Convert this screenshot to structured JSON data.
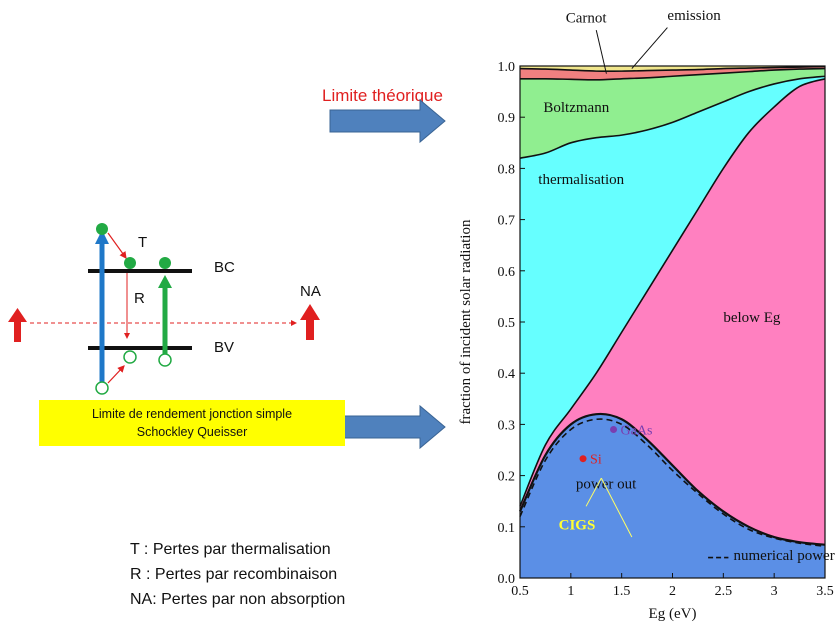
{
  "left_panel": {
    "limite_theorique": "Limite théorique",
    "labels": {
      "T": "T",
      "R": "R",
      "BC": "BC",
      "BV": "BV",
      "NA": "NA"
    },
    "box_line1": "Limite de rendement jonction simple",
    "box_line2": "Schockley Queisser",
    "legend": [
      "T : Pertes par thermalisation",
      "R : Pertes par recombinaison",
      "NA: Pertes par non absorption"
    ]
  },
  "colors": {
    "carnot": "#f08080",
    "emission": "#f0e68c",
    "boltzmann": "#90ee90",
    "thermalisation": "#66ffff",
    "below_eg": "#ff80c0",
    "power_out": "#5b8fe6",
    "red": "#e02020",
    "arrow_blue": "#4f81bd",
    "band_blue": "#1f78c8",
    "electron_green": "#22aa44",
    "purple": "#7a3eb0",
    "cigs_yellow": "#ffff33"
  },
  "chart_data": {
    "type": "area",
    "xlabel": "Eg (eV)",
    "ylabel": "fraction of incident solar radiation",
    "xlim": [
      0.5,
      3.5
    ],
    "ylim": [
      0.0,
      1.0
    ],
    "xticks": [
      "0.5",
      "1",
      "1.5",
      "2",
      "2.5",
      "3",
      "3.5"
    ],
    "yticks": [
      "0.0",
      "0.1",
      "0.2",
      "0.3",
      "0.4",
      "0.5",
      "0.6",
      "0.7",
      "0.8",
      "0.9",
      "1.0"
    ],
    "x": [
      0.5,
      0.75,
      1.0,
      1.25,
      1.5,
      1.75,
      2.0,
      2.25,
      2.5,
      2.75,
      3.0,
      3.25,
      3.5
    ],
    "series": [
      {
        "name": "power out",
        "values": [
          0.13,
          0.24,
          0.3,
          0.32,
          0.31,
          0.27,
          0.22,
          0.17,
          0.13,
          0.1,
          0.08,
          0.07,
          0.065
        ]
      },
      {
        "name": "below Eg",
        "values": [
          0.14,
          0.26,
          0.33,
          0.4,
          0.48,
          0.56,
          0.64,
          0.72,
          0.8,
          0.87,
          0.92,
          0.96,
          0.975
        ]
      },
      {
        "name": "thermalisation",
        "values": [
          0.82,
          0.83,
          0.85,
          0.86,
          0.865,
          0.875,
          0.89,
          0.91,
          0.93,
          0.95,
          0.965,
          0.975,
          0.98
        ]
      },
      {
        "name": "Boltzmann",
        "values": [
          0.975,
          0.975,
          0.974,
          0.973,
          0.975,
          0.977,
          0.98,
          0.983,
          0.986,
          0.989,
          0.992,
          0.994,
          0.995
        ]
      },
      {
        "name": "Carnot",
        "values": [
          0.995,
          0.994,
          0.992,
          0.99,
          0.99,
          0.991,
          0.992,
          0.993,
          0.995,
          0.996,
          0.997,
          0.998,
          0.999
        ]
      },
      {
        "name": "emission",
        "values": [
          1.0,
          1.0,
          1.0,
          1.0,
          1.0,
          1.0,
          1.0,
          1.0,
          1.0,
          1.0,
          1.0,
          1.0,
          1.0
        ]
      }
    ],
    "numerical_power_out": {
      "name": "numerical power out",
      "x": [
        0.5,
        0.75,
        1.0,
        1.25,
        1.5,
        1.75,
        2.0,
        2.25,
        2.5,
        2.75,
        3.0,
        3.25,
        3.5
      ],
      "values": [
        0.12,
        0.23,
        0.29,
        0.31,
        0.3,
        0.26,
        0.21,
        0.165,
        0.125,
        0.095,
        0.078,
        0.068,
        0.062
      ]
    },
    "region_labels": [
      {
        "text": "Carnot",
        "x": 0.95,
        "y": 1.085
      },
      {
        "text": "emission",
        "x": 1.95,
        "y": 1.09
      },
      {
        "text": "Boltzmann",
        "x": 0.73,
        "y": 0.91
      },
      {
        "text": "thermalisation",
        "x": 0.68,
        "y": 0.77
      },
      {
        "text": "below Eg",
        "x": 2.5,
        "y": 0.5
      },
      {
        "text": "power out",
        "x": 1.05,
        "y": 0.175
      },
      {
        "text": "numerical power out",
        "x": 2.6,
        "y": 0.035
      }
    ],
    "points": [
      {
        "label": "GaAs",
        "x": 1.42,
        "y": 0.29,
        "color": "#7a3eb0"
      },
      {
        "label": "Si",
        "x": 1.12,
        "y": 0.233,
        "color": "#e02020"
      }
    ],
    "cigs_label": "CIGS"
  }
}
